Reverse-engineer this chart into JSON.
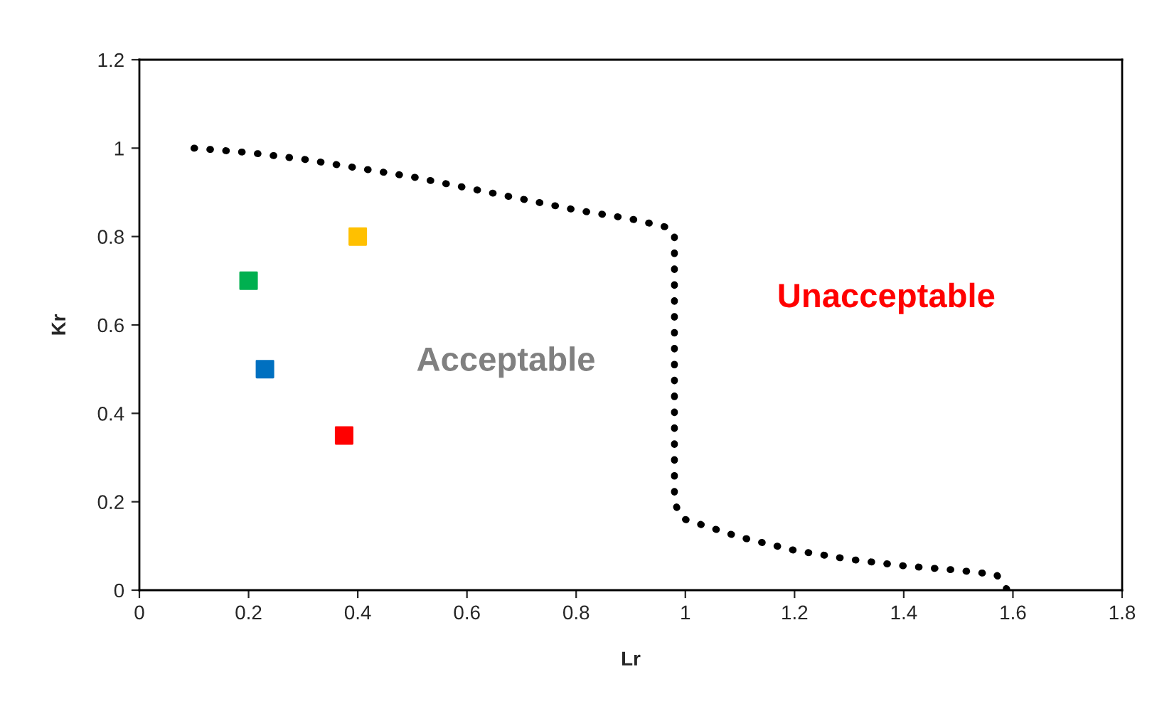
{
  "chart_data": {
    "type": "scatter",
    "xlabel": "Lr",
    "ylabel": "Kr",
    "xlim": [
      0,
      1.8
    ],
    "ylim": [
      0,
      1.2
    ],
    "xticks": [
      0,
      0.2,
      0.4,
      0.6,
      0.8,
      1,
      1.2,
      1.4,
      1.6,
      1.8
    ],
    "yticks": [
      0,
      0.2,
      0.4,
      0.6,
      0.8,
      1,
      1.2
    ],
    "grid": false,
    "legend": false,
    "marker": "square",
    "annotations": [
      "Acceptable",
      "Unacceptable"
    ],
    "series": [
      {
        "type": "line",
        "line_style": "dotted",
        "marker": "none",
        "color": "#000000",
        "x": [
          0.1,
          0.2,
          0.3,
          0.4,
          0.5,
          0.6,
          0.7,
          0.8,
          0.9,
          0.97,
          0.98,
          0.98,
          0.98,
          0.99,
          1.0,
          1.1,
          1.2,
          1.3,
          1.4,
          1.5,
          1.57,
          1.59
        ],
        "values": [
          1.0,
          0.99,
          0.975,
          0.955,
          0.935,
          0.91,
          0.885,
          0.86,
          0.84,
          0.82,
          0.8,
          0.5,
          0.2,
          0.17,
          0.16,
          0.12,
          0.09,
          0.07,
          0.055,
          0.045,
          0.035,
          0.0
        ]
      },
      {
        "color": "#00b050",
        "x": [
          0.2
        ],
        "values": [
          0.7
        ]
      },
      {
        "color": "#0070c0",
        "x": [
          0.23
        ],
        "values": [
          0.5
        ]
      },
      {
        "color": "#ffc000",
        "x": [
          0.4
        ],
        "values": [
          0.8
        ]
      },
      {
        "color": "#ff0000",
        "x": [
          0.375
        ],
        "values": [
          0.35
        ]
      }
    ]
  }
}
